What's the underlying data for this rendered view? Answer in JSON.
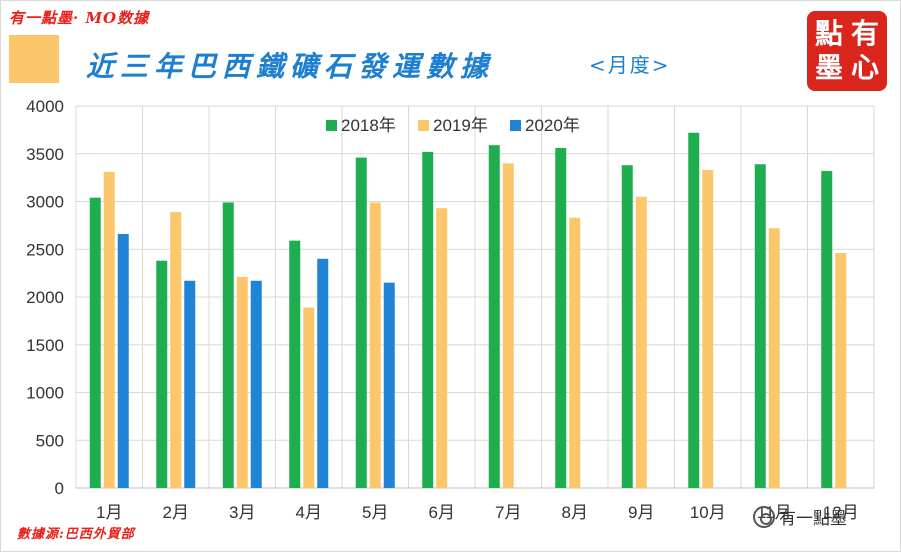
{
  "header": {
    "brand": "有一點墨· MO数據",
    "title": "近三年巴西鐵礦石發運數據",
    "subtitle": "<月度>",
    "seal_chars": [
      "點",
      "墨",
      "有",
      "心"
    ],
    "source": "數據源:巴西外貿部",
    "watermark": "有一點墨"
  },
  "colors": {
    "series_2018": "#1fae4f",
    "series_2019": "#fcc66a",
    "series_2020": "#1f83d6",
    "title": "#1d7fd0",
    "brand_red": "#e8221b"
  },
  "chart_data": {
    "type": "bar",
    "title": "近三年巴西鐵礦石發運數據",
    "subtitle": "<月度>",
    "xlabel": "",
    "ylabel": "",
    "ylim": [
      0,
      4000
    ],
    "yticks": [
      "0",
      "500",
      "1000",
      "1500",
      "2000",
      "2500",
      "3000",
      "3500",
      "4000"
    ],
    "grid": true,
    "legend_position": "top-center",
    "categories": [
      "1月",
      "2月",
      "3月",
      "4月",
      "5月",
      "6月",
      "7月",
      "8月",
      "9月",
      "10月",
      "11月",
      "12月"
    ],
    "series": [
      {
        "name": "2018年",
        "values": [
          3040,
          2380,
          2990,
          2590,
          3460,
          3520,
          3590,
          3560,
          3380,
          3720,
          3390,
          3320
        ]
      },
      {
        "name": "2019年",
        "values": [
          3310,
          2890,
          2210,
          1890,
          2990,
          2930,
          3400,
          2830,
          3050,
          3330,
          2720,
          2460
        ]
      },
      {
        "name": "2020年",
        "values": [
          2660,
          2170,
          2170,
          2400,
          2150,
          null,
          null,
          null,
          null,
          null,
          null,
          null
        ]
      }
    ]
  }
}
